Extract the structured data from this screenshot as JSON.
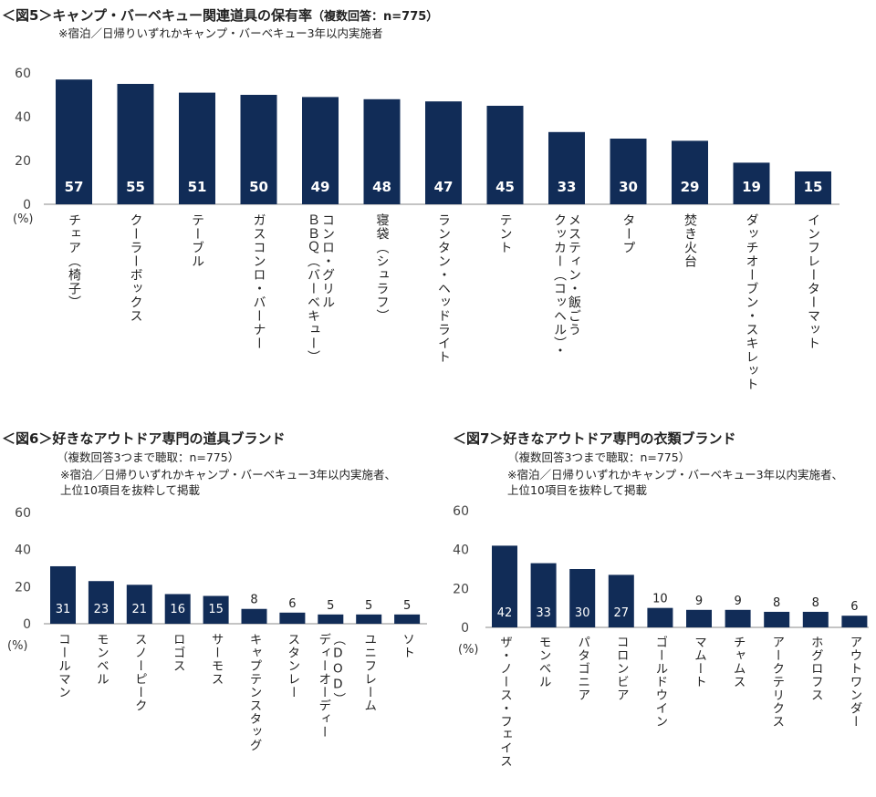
{
  "colors": {
    "bar": "#112c57",
    "axis": "#888888",
    "text": "#222222"
  },
  "chart_data": [
    {
      "type": "bar",
      "id": "fig5",
      "title": "＜図5＞キャンプ・バーベキュー関連道具の保有率",
      "title_note": "（複数回答：n=775）",
      "subtitle": "※宿泊／日帰りいずれかキャンプ・バーベキュー3年以内実施者",
      "ylabel": "(%)",
      "ylim": [
        0,
        60
      ],
      "yticks": [
        "0",
        "20",
        "40",
        "60"
      ],
      "categories": [
        [
          "チェア（椅子）"
        ],
        [
          "クーラーボックス"
        ],
        [
          "テーブル"
        ],
        [
          "ガスコンロ・バーナー"
        ],
        [
          "ＢＢＱ（バーベキュー）",
          "コンロ・グリル"
        ],
        [
          "寝袋（シュラフ）"
        ],
        [
          "ランタン・ヘッドライト"
        ],
        [
          "テント"
        ],
        [
          "クッカー（コッヘル）・",
          "メスティン・飯ごう"
        ],
        [
          "タープ"
        ],
        [
          "焚き火台"
        ],
        [
          "ダッチオーブン・スキレット"
        ],
        [
          "インフレーターマット"
        ]
      ],
      "values": [
        57,
        55,
        51,
        50,
        49,
        48,
        47,
        45,
        33,
        30,
        29,
        19,
        15
      ]
    },
    {
      "type": "bar",
      "id": "fig6",
      "title": "＜図6＞好きなアウトドア専門の道具ブランド",
      "title_note": "（複数回答3つまで聴取：n=775）",
      "subtitle": "※宿泊／日帰りいずれかキャンプ・バーベキュー3年以内実施者、",
      "subtitle2": "上位10項目を抜粋して掲載",
      "ylabel": "(%)",
      "ylim": [
        0,
        60
      ],
      "yticks": [
        "0",
        "20",
        "40",
        "60"
      ],
      "categories": [
        [
          "コールマン"
        ],
        [
          "モンベル"
        ],
        [
          "スノーピーク"
        ],
        [
          "ロゴス"
        ],
        [
          "サーモス"
        ],
        [
          "キャプテンスタッグ"
        ],
        [
          "スタンレー"
        ],
        [
          "ディーオーディー",
          "（DOD）"
        ],
        [
          "ユニフレーム"
        ],
        [
          "ソト"
        ]
      ],
      "values": [
        31,
        23,
        21,
        16,
        15,
        8,
        6,
        5,
        5,
        5
      ]
    },
    {
      "type": "bar",
      "id": "fig7",
      "title": "＜図7＞好きなアウトドア専門の衣類ブランド",
      "title_note": "（複数回答3つまで聴取：n=775）",
      "subtitle": "※宿泊／日帰りいずれかキャンプ・バーベキュー3年以内実施者、",
      "subtitle2": "上位10項目を抜粋して掲載",
      "ylabel": "(%)",
      "ylim": [
        0,
        60
      ],
      "yticks": [
        "0",
        "20",
        "40",
        "60"
      ],
      "categories": [
        [
          "ザ・ノース・フェイス"
        ],
        [
          "モンベル"
        ],
        [
          "パタゴニア"
        ],
        [
          "コロンビア"
        ],
        [
          "ゴールドウイン"
        ],
        [
          "マムート"
        ],
        [
          "チャムス"
        ],
        [
          "アークテリクス"
        ],
        [
          "ホグロフス"
        ],
        [
          "アウトワンダー"
        ]
      ],
      "values": [
        42,
        33,
        30,
        27,
        10,
        9,
        9,
        8,
        8,
        6
      ]
    }
  ]
}
